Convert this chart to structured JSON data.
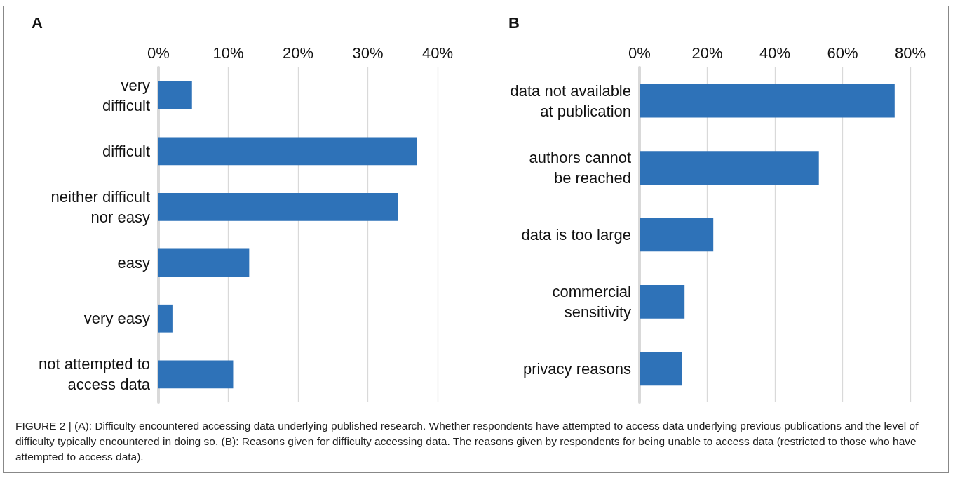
{
  "chart_data": [
    {
      "type": "bar",
      "title": "A",
      "orientation": "horizontal",
      "categories": [
        "very\ndifficult",
        "difficult",
        "neither difficult\nnor easy",
        "easy",
        "very easy",
        "not attempted to\naccess data"
      ],
      "series": [
        {
          "color": "#2e72b8",
          "values": [
            4.8,
            37.0,
            34.3,
            13.0,
            2.0,
            10.7
          ]
        }
      ],
      "xlim": [
        0,
        40
      ],
      "xticks": [
        {
          "value": 0,
          "label": "0%"
        },
        {
          "value": 10,
          "label": "10%"
        },
        {
          "value": 20,
          "label": "20%"
        },
        {
          "value": 30,
          "label": "30%"
        },
        {
          "value": 40,
          "label": "40%"
        }
      ],
      "grid": "x",
      "annotations": [
        "FIGURE 2 | (A): Difficulty encountered accessing data underlying published research. Whether respondents have attempted to access data underlying previous publications and the level of difficulty typically encountered in doing so. (B): Reasons given for difficulty accessing data. The reasons given by respondents for being unable to access data (restricted to those who have attempted to access data)."
      ]
    },
    {
      "type": "bar",
      "title": "B",
      "orientation": "horizontal",
      "categories": [
        "data not available\nat publication",
        "authors cannot\nbe reached",
        "data is too large",
        "commercial\nsensitivity",
        "privacy reasons"
      ],
      "series": [
        {
          "color": "#2e72b8",
          "values": [
            75.4,
            53.0,
            21.8,
            13.3,
            12.6
          ]
        }
      ],
      "xlim": [
        0,
        80
      ],
      "xticks": [
        {
          "value": 0,
          "label": "0%"
        },
        {
          "value": 20,
          "label": "20%"
        },
        {
          "value": 40,
          "label": "40%"
        },
        {
          "value": 60,
          "label": "60%"
        },
        {
          "value": 80,
          "label": "80%"
        }
      ],
      "grid": "x"
    }
  ]
}
